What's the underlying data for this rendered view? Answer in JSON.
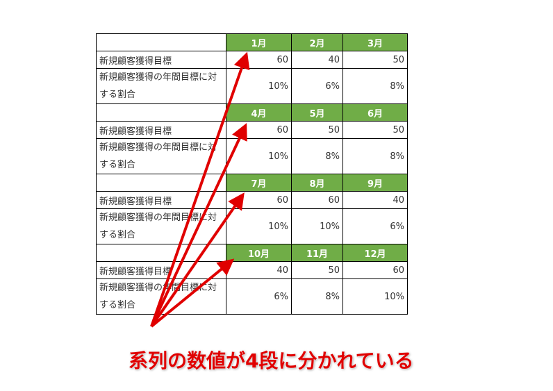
{
  "row_labels": {
    "target": "新規顧客獲得目標",
    "ratio": "新規顧客獲得の年間目標に対する割合"
  },
  "blocks": [
    {
      "months": [
        "1月",
        "2月",
        "3月"
      ],
      "targets": [
        "60",
        "40",
        "50"
      ],
      "ratios": [
        "10%",
        "6%",
        "8%"
      ]
    },
    {
      "months": [
        "4月",
        "5月",
        "6月"
      ],
      "targets": [
        "60",
        "50",
        "50"
      ],
      "ratios": [
        "10%",
        "8%",
        "8%"
      ]
    },
    {
      "months": [
        "7月",
        "8月",
        "9月"
      ],
      "targets": [
        "60",
        "60",
        "40"
      ],
      "ratios": [
        "10%",
        "10%",
        "6%"
      ]
    },
    {
      "months": [
        "10月",
        "11月",
        "12月"
      ],
      "targets": [
        "40",
        "50",
        "60"
      ],
      "ratios": [
        "6%",
        "8%",
        "10%"
      ]
    }
  ],
  "caption": "系列の数値が4段に分かれている",
  "colors": {
    "header": "#70ad47",
    "arrow": "#e00000"
  }
}
